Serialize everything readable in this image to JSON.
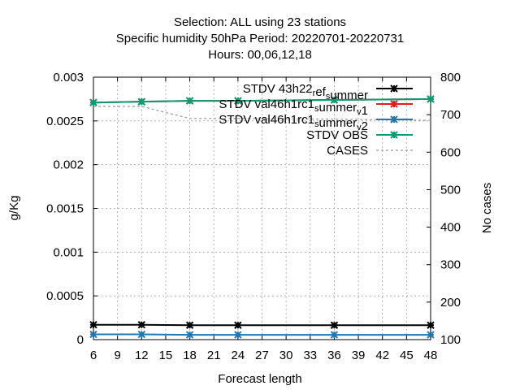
{
  "chart_data": {
    "type": "line",
    "title": {
      "line1": "Selection: ALL using    23 stations",
      "line2": "Specific humidity 50hPa   Period: 20220701-20220731",
      "line3": "Hours:  00,06,12,18"
    },
    "xlabel": "Forecast length",
    "ylabel": "g/Kg",
    "y2label": "No cases",
    "xlim": [
      6,
      48
    ],
    "ylim": [
      0,
      0.003
    ],
    "y2lim": [
      100,
      800
    ],
    "xticks": [
      "6",
      "9",
      "12",
      "15",
      "18",
      "21",
      "24",
      "27",
      "30",
      "33",
      "36",
      "39",
      "42",
      "45",
      "48"
    ],
    "yticks": [
      "0",
      "0.0005",
      "0.001",
      "0.0015",
      "0.002",
      "0.0025",
      "0.003"
    ],
    "y2ticks": [
      "100",
      "200",
      "300",
      "400",
      "500",
      "600",
      "700",
      "800"
    ],
    "grid": true,
    "legend_position": "top-right",
    "x": [
      6,
      12,
      18,
      24,
      36,
      48
    ],
    "series": [
      {
        "name": "STDV 43h22_ref_summer",
        "color": "#000000",
        "axis": "y1",
        "marker": "star",
        "values": [
          0.00017,
          0.00017,
          0.000165,
          0.000165,
          0.000165,
          0.000165
        ]
      },
      {
        "name": "STDV val46h1rc1_summer_v1",
        "color": "#e41a1c",
        "axis": "y1",
        "marker": "star",
        "values": [
          0.00271,
          0.00272,
          0.00273,
          0.00273,
          0.00274,
          0.00275
        ]
      },
      {
        "name": "STDV val46h1rc1_summer_v2",
        "color": "#1f78b4",
        "axis": "y1",
        "marker": "star",
        "values": [
          6e-05,
          6e-05,
          5.5e-05,
          5.5e-05,
          5.5e-05,
          5.5e-05
        ]
      },
      {
        "name": "STDV OBS",
        "color": "#009e73",
        "axis": "y1",
        "marker": "star",
        "values": [
          0.00271,
          0.00272,
          0.00273,
          0.00273,
          0.00274,
          0.00275
        ]
      },
      {
        "name": "CASES",
        "color": "#999999",
        "axis": "y2",
        "marker": "none",
        "dashed": true,
        "values": [
          722,
          722,
          690,
          690,
          688,
          685
        ]
      }
    ],
    "legend": [
      {
        "name_parts": [
          {
            "t": "STDV 43h22"
          },
          {
            "t": "r",
            "sub": true
          },
          {
            "t": "ef"
          },
          {
            "t": "s",
            "sub": true
          },
          {
            "t": "ummer"
          }
        ],
        "color": "#000000",
        "marker": "star"
      },
      {
        "name_parts": [
          {
            "t": "STDV val46h1rc1"
          },
          {
            "t": "s",
            "sub": true
          },
          {
            "t": "ummer"
          },
          {
            "t": "v",
            "sub": true
          },
          {
            "t": "1"
          }
        ],
        "color": "#e41a1c",
        "marker": "star"
      },
      {
        "name_parts": [
          {
            "t": "STDV val46h1rc1"
          },
          {
            "t": "s",
            "sub": true
          },
          {
            "t": "ummer"
          },
          {
            "t": "v",
            "sub": true
          },
          {
            "t": "2"
          }
        ],
        "color": "#1f78b4",
        "marker": "star"
      },
      {
        "name_parts": [
          {
            "t": "STDV OBS"
          }
        ],
        "color": "#009e73",
        "marker": "star"
      },
      {
        "name_parts": [
          {
            "t": "CASES"
          }
        ],
        "color": "#999999",
        "marker": "none",
        "dashed": true
      }
    ]
  }
}
